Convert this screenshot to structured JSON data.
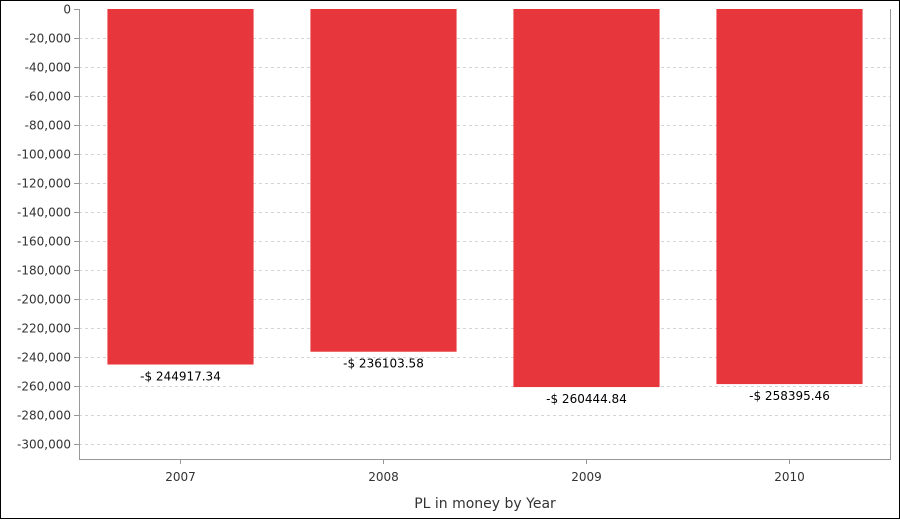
{
  "chart_data": {
    "type": "bar",
    "title": "",
    "xlabel": "PL in money by Year",
    "ylabel": "",
    "categories": [
      "2007",
      "2008",
      "2009",
      "2010"
    ],
    "values": [
      -244917.34,
      -236103.58,
      -260444.84,
      -258395.46
    ],
    "data_labels": [
      "-$ 244917.34",
      "-$ 236103.58",
      "-$ 260444.84",
      "-$ 258395.46"
    ],
    "ylim": [
      -310000,
      0
    ],
    "yticks": [
      0,
      -20000,
      -40000,
      -60000,
      -80000,
      -100000,
      -120000,
      -140000,
      -160000,
      -180000,
      -200000,
      -220000,
      -240000,
      -260000,
      -280000,
      -300000
    ],
    "ytick_labels": [
      "0",
      "-20,000",
      "-40,000",
      "-60,000",
      "-80,000",
      "-100,000",
      "-120,000",
      "-140,000",
      "-160,000",
      "-180,000",
      "-200,000",
      "-220,000",
      "-240,000",
      "-260,000",
      "-280,000",
      "-300,000"
    ],
    "grid": true,
    "legend": "none",
    "colors": {
      "bar": "#e8373c",
      "grid": "#d4d4d4",
      "axis": "#999999"
    }
  }
}
